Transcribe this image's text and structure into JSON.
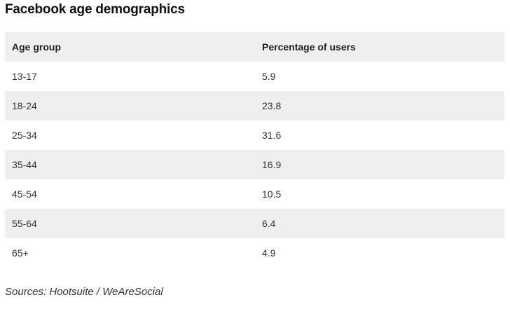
{
  "title": "Facebook age demographics",
  "table": {
    "headers": [
      "Age group",
      "Percentage of users"
    ],
    "rows": [
      [
        "13-17",
        "5.9"
      ],
      [
        "18-24",
        "23.8"
      ],
      [
        "25-34",
        "31.6"
      ],
      [
        "35-44",
        "16.9"
      ],
      [
        "45-54",
        "10.5"
      ],
      [
        "55-64",
        "6.4"
      ],
      [
        "65+",
        "4.9"
      ]
    ]
  },
  "source": "Sources: Hootsuite / WeAreSocial",
  "colors": {
    "header_bg": "#efefef",
    "stripe_bg": "#efefef"
  }
}
